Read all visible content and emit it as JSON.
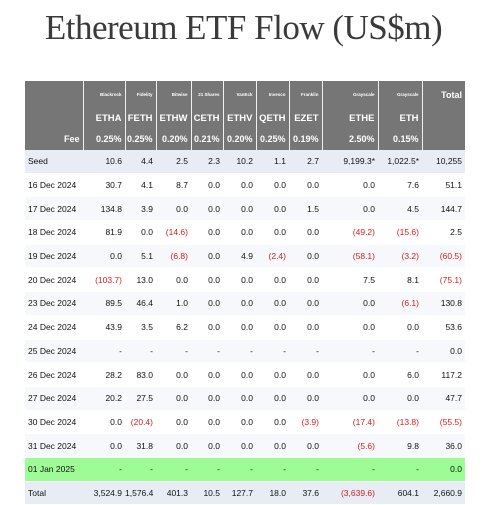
{
  "title": "Ethereum ETF Flow (US$m)",
  "issuers": [
    "Blackrock",
    "Fidelity",
    "Bitwise",
    "21 Shares",
    "VanEck",
    "Invesco",
    "Franklin",
    "Grayscale",
    "Grayscale"
  ],
  "total_header": "Total",
  "tickers": [
    "ETHA",
    "FETH",
    "ETHW",
    "CETH",
    "ETHV",
    "QETH",
    "EZET",
    "ETHE",
    "ETH"
  ],
  "fee_label": "Fee",
  "fees": [
    "0.25%",
    "0.25%",
    "0.20%",
    "0.21%",
    "0.20%",
    "0.25%",
    "0.19%",
    "2.50%",
    "0.15%"
  ],
  "rows": [
    {
      "label": "Seed",
      "values": [
        "10.6",
        "4.4",
        "2.5",
        "2.3",
        "10.2",
        "1.1",
        "2.7",
        "9,199.3*",
        "1,022.5*",
        "10,255"
      ],
      "style": "seed"
    },
    {
      "label": "16 Dec 2024",
      "values": [
        "30.7",
        "4.1",
        "8.7",
        "0.0",
        "0.0",
        "0.0",
        "0.0",
        "0.0",
        "7.6",
        "51.1"
      ],
      "style": "normal"
    },
    {
      "label": "17 Dec 2024",
      "values": [
        "134.8",
        "3.9",
        "0.0",
        "0.0",
        "0.0",
        "0.0",
        "1.5",
        "0.0",
        "4.5",
        "144.7"
      ],
      "style": "alt"
    },
    {
      "label": "18 Dec 2024",
      "values": [
        "81.9",
        "0.0",
        "(14.6)",
        "0.0",
        "0.0",
        "0.0",
        "0.0",
        "(49.2)",
        "(15.6)",
        "2.5"
      ],
      "style": "normal"
    },
    {
      "label": "19 Dec 2024",
      "values": [
        "0.0",
        "5.1",
        "(6.8)",
        "0.0",
        "4.9",
        "(2.4)",
        "0.0",
        "(58.1)",
        "(3.2)",
        "(60.5)"
      ],
      "style": "alt"
    },
    {
      "label": "20 Dec 2024",
      "values": [
        "(103.7)",
        "13.0",
        "0.0",
        "0.0",
        "0.0",
        "0.0",
        "0.0",
        "7.5",
        "8.1",
        "(75.1)"
      ],
      "style": "normal"
    },
    {
      "label": "23 Dec 2024",
      "values": [
        "89.5",
        "46.4",
        "1.0",
        "0.0",
        "0.0",
        "0.0",
        "0.0",
        "0.0",
        "(6.1)",
        "130.8"
      ],
      "style": "alt"
    },
    {
      "label": "24 Dec 2024",
      "values": [
        "43.9",
        "3.5",
        "6.2",
        "0.0",
        "0.0",
        "0.0",
        "0.0",
        "0.0",
        "0.0",
        "53.6"
      ],
      "style": "normal"
    },
    {
      "label": "25 Dec 2024",
      "values": [
        "-",
        "-",
        "-",
        "-",
        "-",
        "-",
        "-",
        "-",
        "-",
        "0.0"
      ],
      "style": "alt"
    },
    {
      "label": "26 Dec 2024",
      "values": [
        "28.2",
        "83.0",
        "0.0",
        "0.0",
        "0.0",
        "0.0",
        "0.0",
        "0.0",
        "6.0",
        "117.2"
      ],
      "style": "normal"
    },
    {
      "label": "27 Dec 2024",
      "values": [
        "20.2",
        "27.5",
        "0.0",
        "0.0",
        "0.0",
        "0.0",
        "0.0",
        "0.0",
        "0.0",
        "47.7"
      ],
      "style": "alt"
    },
    {
      "label": "30 Dec 2024",
      "values": [
        "0.0",
        "(20.4)",
        "0.0",
        "0.0",
        "0.0",
        "0.0",
        "(3.9)",
        "(17.4)",
        "(13.8)",
        "(55.5)"
      ],
      "style": "normal"
    },
    {
      "label": "31 Dec 2024",
      "values": [
        "0.0",
        "31.8",
        "0.0",
        "0.0",
        "0.0",
        "0.0",
        "0.0",
        "(5.6)",
        "9.8",
        "36.0"
      ],
      "style": "alt"
    },
    {
      "label": "01 Jan 2025",
      "values": [
        "-",
        "-",
        "-",
        "-",
        "-",
        "-",
        "-",
        "-",
        "-",
        "0.0"
      ],
      "style": "newyear"
    },
    {
      "label": "Total",
      "values": [
        "3,524.9",
        "1,576.4",
        "401.3",
        "10.5",
        "127.7",
        "18.0",
        "37.6",
        "(3,639.6)",
        "604.1",
        "2,660.9"
      ],
      "style": "total"
    }
  ]
}
